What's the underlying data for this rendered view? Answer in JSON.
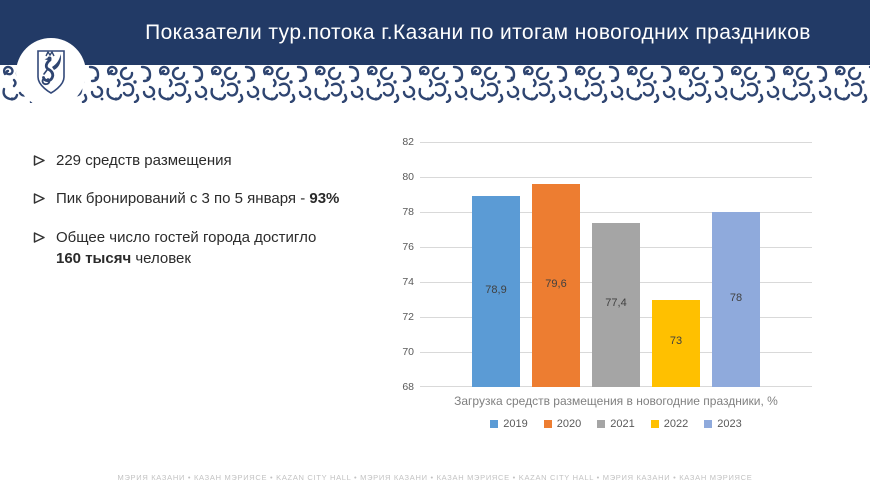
{
  "slide": {
    "title": "Показатели тур.потока г.Казани по итогам новогодних праздников",
    "logo": "kazan-zilant-coat-of-arms",
    "footer_text": "МЭРИЯ КАЗАНИ   •   КАЗАН МЭРИЯСЕ   •   KAZAN CITY HALL   •   МЭРИЯ КАЗАНИ   •   КАЗАН МЭРИЯСЕ   •   KAZAN CITY HALL   •   МЭРИЯ КАЗАНИ   •   КАЗАН МЭРИЯСЕ"
  },
  "colors": {
    "header_bg": "#223A66",
    "pattern_ink": "#2F4571",
    "body_text": "#2B2B2B",
    "axis_text": "#595959",
    "axis_title_text": "#808080",
    "gridline": "#D9D9D9",
    "data_label": "#404040",
    "footer_text": "#C2C2C2"
  },
  "bullets": [
    {
      "segments": [
        {
          "text": "229 средств размещения",
          "bold": false
        }
      ]
    },
    {
      "segments": [
        {
          "text": "Пик бронирований с 3 по 5 января - ",
          "bold": false
        },
        {
          "text": "93%",
          "bold": true
        }
      ]
    },
    {
      "segments": [
        {
          "text": "Общее число гостей города достигло",
          "bold": false
        },
        {
          "text": "160 тысяч",
          "bold": true,
          "br_before": true
        },
        {
          "text": " человек",
          "bold": false
        }
      ]
    }
  ],
  "chart_data": {
    "type": "bar",
    "title": "",
    "categories": [
      "Загрузка средств размещения в новогодние праздники, %"
    ],
    "series": [
      {
        "name": "2019",
        "value": 78.9,
        "label": "78,9",
        "color": "#5B9BD5"
      },
      {
        "name": "2020",
        "value": 79.6,
        "label": "79,6",
        "color": "#ED7D31"
      },
      {
        "name": "2021",
        "value": 77.4,
        "label": "77,4",
        "color": "#A5A5A5"
      },
      {
        "name": "2022",
        "value": 73,
        "label": "73",
        "color": "#FFC000"
      },
      {
        "name": "2023",
        "value": 78,
        "label": "78",
        "color": "#8FAADC"
      }
    ],
    "xlabel": "Загрузка средств размещения в новогодние праздники, %",
    "ylabel": "",
    "ylim": [
      68,
      82
    ],
    "yticks": [
      68,
      70,
      72,
      74,
      76,
      78,
      80,
      82
    ],
    "grid": true,
    "legend_position": "bottom"
  }
}
